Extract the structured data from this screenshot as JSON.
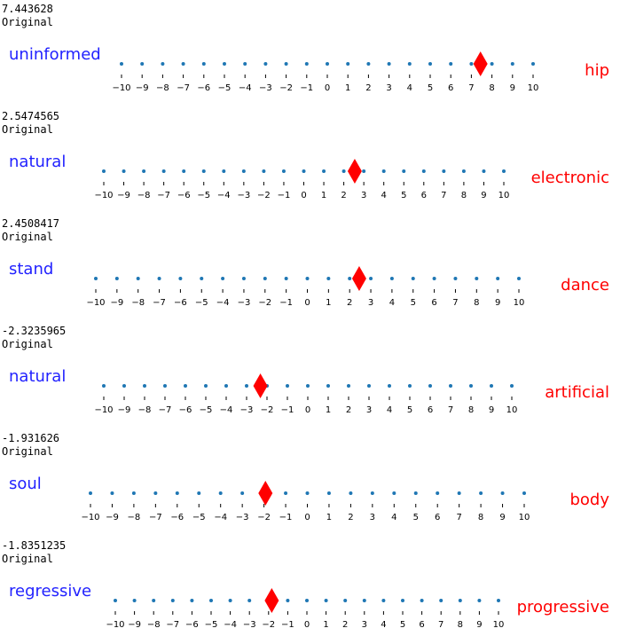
{
  "colors": {
    "left_word": "#2222ff",
    "right_word": "#ff0000",
    "dots": "#1f77b4",
    "marker": "#ff0000",
    "axis": "#000000"
  },
  "chart_data": [
    {
      "type": "scatter",
      "value_text": "7.443628",
      "caption": "Original",
      "left_word": "uninformed",
      "right_word": "hip",
      "marker_value": 7.443628,
      "dot_x": [
        -10,
        -9,
        -8,
        -7,
        -6,
        -5,
        -4,
        -3,
        -2,
        -1,
        0,
        1,
        2,
        3,
        4,
        5,
        6,
        7,
        8,
        9,
        10
      ],
      "tick_labels": [
        "−10",
        "−9",
        "−8",
        "−7",
        "−6",
        "−5",
        "−4",
        "−3",
        "−2",
        "−1",
        "0",
        "1",
        "2",
        "3",
        "4",
        "5",
        "6",
        "7",
        "8",
        "9",
        "10"
      ],
      "xlim": [
        -10,
        10
      ]
    },
    {
      "type": "scatter",
      "value_text": "2.5474565",
      "caption": "Original",
      "left_word": "natural",
      "right_word": "electronic",
      "marker_value": 2.5474565,
      "dot_x": [
        -10,
        -9,
        -8,
        -7,
        -6,
        -5,
        -4,
        -3,
        -2,
        -1,
        0,
        1,
        2,
        3,
        4,
        5,
        6,
        7,
        8,
        9,
        10
      ],
      "tick_labels": [
        "−10",
        "−9",
        "−8",
        "−7",
        "−6",
        "−5",
        "−4",
        "−3",
        "−2",
        "−1",
        "0",
        "1",
        "2",
        "3",
        "4",
        "5",
        "6",
        "7",
        "8",
        "9",
        "10"
      ],
      "xlim": [
        -10,
        10
      ]
    },
    {
      "type": "scatter",
      "value_text": "2.4508417",
      "caption": "Original",
      "left_word": "stand",
      "right_word": "dance",
      "marker_value": 2.4508417,
      "dot_x": [
        -10,
        -9,
        -8,
        -7,
        -6,
        -5,
        -4,
        -3,
        -2,
        -1,
        0,
        1,
        2,
        3,
        4,
        5,
        6,
        7,
        8,
        9,
        10
      ],
      "tick_labels": [
        "−10",
        "−9",
        "−8",
        "−7",
        "−6",
        "−5",
        "−4",
        "−3",
        "−2",
        "−1",
        "0",
        "1",
        "2",
        "3",
        "4",
        "5",
        "6",
        "7",
        "8",
        "9",
        "10"
      ],
      "xlim": [
        -10,
        10
      ]
    },
    {
      "type": "scatter",
      "value_text": "-2.3235965",
      "caption": "Original",
      "left_word": "natural",
      "right_word": "artificial",
      "marker_value": -2.3235965,
      "dot_x": [
        -10,
        -9,
        -8,
        -7,
        -6,
        -5,
        -4,
        -3,
        -2,
        -1,
        0,
        1,
        2,
        3,
        4,
        5,
        6,
        7,
        8,
        9,
        10
      ],
      "tick_labels": [
        "−10",
        "−9",
        "−8",
        "−7",
        "−6",
        "−5",
        "−4",
        "−3",
        "−2",
        "−1",
        "0",
        "1",
        "2",
        "3",
        "4",
        "5",
        "6",
        "7",
        "8",
        "9",
        "10"
      ],
      "xlim": [
        -10,
        10
      ]
    },
    {
      "type": "scatter",
      "value_text": "-1.931626",
      "caption": "Original",
      "left_word": "soul",
      "right_word": "body",
      "marker_value": -1.931626,
      "dot_x": [
        -10,
        -9,
        -8,
        -7,
        -6,
        -5,
        -4,
        -3,
        -2,
        -1,
        0,
        1,
        2,
        3,
        4,
        5,
        6,
        7,
        8,
        9,
        10
      ],
      "tick_labels": [
        "−10",
        "−9",
        "−8",
        "−7",
        "−6",
        "−5",
        "−4",
        "−3",
        "−2",
        "−1",
        "0",
        "1",
        "2",
        "3",
        "4",
        "5",
        "6",
        "7",
        "8",
        "9",
        "10"
      ],
      "xlim": [
        -10,
        10
      ]
    },
    {
      "type": "scatter",
      "value_text": "-1.8351235",
      "caption": "Original",
      "left_word": "regressive",
      "right_word": "progressive",
      "marker_value": -1.8351235,
      "dot_x": [
        -10,
        -9,
        -8,
        -7,
        -6,
        -5,
        -4,
        -3,
        -2,
        -1,
        0,
        1,
        2,
        3,
        4,
        5,
        6,
        7,
        8,
        9,
        10
      ],
      "tick_labels": [
        "−10",
        "−9",
        "−8",
        "−7",
        "−6",
        "−5",
        "−4",
        "−3",
        "−2",
        "−1",
        "0",
        "1",
        "2",
        "3",
        "4",
        "5",
        "6",
        "7",
        "8",
        "9",
        "10"
      ],
      "xlim": [
        -10,
        10
      ]
    }
  ]
}
